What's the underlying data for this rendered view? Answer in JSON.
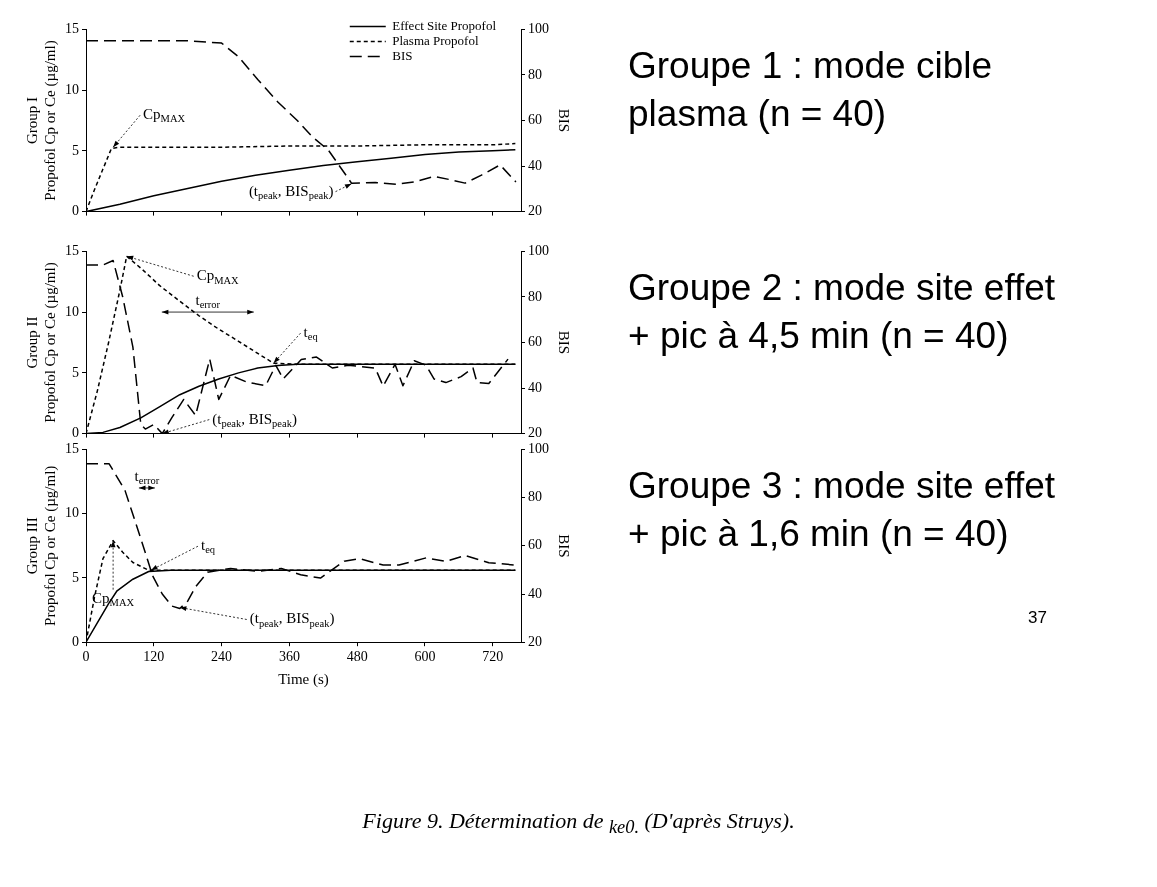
{
  "chart_data": [
    {
      "type": "line",
      "ylabel": "Group I\nPropofol Cp or Ce (µg/ml)",
      "y2label": "BIS",
      "xlim": [
        0,
        770
      ],
      "xticks": [
        0,
        120,
        240,
        360,
        480,
        600,
        720
      ],
      "ylim": [
        0,
        15
      ],
      "yticks": [
        0,
        5,
        10,
        15
      ],
      "y2lim": [
        20,
        100
      ],
      "y2ticks": [
        20,
        40,
        60,
        80,
        100
      ],
      "tick_labels": "y",
      "legend": "top right",
      "series": [
        {
          "name": "Effect Site Propofol",
          "color": "#000000",
          "line_style": "solid",
          "x": [
            0,
            60,
            120,
            180,
            240,
            300,
            360,
            420,
            480,
            540,
            600,
            660,
            720,
            760
          ],
          "values": [
            0,
            0.6,
            1.3,
            1.9,
            2.5,
            3.0,
            3.4,
            3.8,
            4.1,
            4.4,
            4.7,
            4.9,
            5.0,
            5.1
          ]
        },
        {
          "name": "Plasma Propofol",
          "color": "#000000",
          "line_style": "dotted",
          "x": [
            0,
            15,
            30,
            45,
            60,
            120,
            240,
            360,
            480,
            600,
            720,
            760
          ],
          "values": [
            0,
            1.8,
            3.5,
            5.2,
            5.3,
            5.3,
            5.3,
            5.4,
            5.4,
            5.5,
            5.5,
            5.6
          ]
        },
        {
          "name": "BIS",
          "color": "#000000",
          "line_style": "dashed",
          "axis": "y2",
          "x": [
            0,
            60,
            120,
            180,
            240,
            270,
            304,
            340,
            374,
            400,
            429,
            470,
            512,
            550,
            581,
            616,
            645,
            671,
            700,
            733,
            761
          ],
          "values": [
            95,
            95,
            95,
            95,
            94,
            88,
            78,
            68,
            60,
            53,
            47,
            32.5,
            32.8,
            32,
            33,
            35.4,
            34,
            32.5,
            36,
            40.5,
            33
          ]
        }
      ],
      "annotations": [
        {
          "text": "Cp$_{MAX}$",
          "x": 48,
          "y": 5.3
        },
        {
          "text": "(t$_{peak}$, BIS$_{peak}$)",
          "x": 470,
          "y": 2.3
        }
      ]
    },
    {
      "type": "line",
      "ylabel": "Group II\nPropofol Cp or Ce (µg/ml)",
      "y2label": "BIS",
      "xlim": [
        0,
        770
      ],
      "xticks": [
        0,
        120,
        240,
        360,
        480,
        600,
        720
      ],
      "ylim": [
        0,
        15
      ],
      "yticks": [
        0,
        5,
        10,
        15
      ],
      "y2lim": [
        20,
        100
      ],
      "y2ticks": [
        20,
        40,
        60,
        80,
        100
      ],
      "tick_labels": "y",
      "series": [
        {
          "color": "#000000",
          "line_style": "solid",
          "x": [
            0,
            30,
            60,
            97,
            130,
            166,
            200,
            235,
            270,
            304,
            340,
            374,
            450,
            550,
            650,
            760
          ],
          "values": [
            0,
            0.1,
            0.5,
            1.3,
            2.2,
            3.2,
            3.9,
            4.5,
            5.0,
            5.4,
            5.6,
            5.7,
            5.7,
            5.7,
            5.7,
            5.7
          ]
        },
        {
          "color": "#000000",
          "line_style": "dotted",
          "x": [
            0,
            20,
            40,
            60,
            72,
            100,
            130,
            166,
            200,
            235,
            270,
            304,
            332,
            380,
            500,
            650,
            760
          ],
          "values": [
            0,
            3.5,
            7.5,
            11.8,
            14.6,
            13.5,
            12.2,
            10.9,
            9.7,
            8.6,
            7.6,
            6.6,
            5.8,
            5.7,
            5.7,
            5.7,
            5.7
          ]
        },
        {
          "color": "#000000",
          "line_style": "dashed",
          "axis": "y2",
          "x": [
            0,
            30,
            48,
            65,
            83,
            97,
            105,
            120,
            135,
            152,
            173,
            194,
            219,
            235,
            256,
            284,
            318,
            336,
            349,
            381,
            408,
            436,
            464,
            512,
            526,
            547,
            561,
            581,
            602,
            616,
            637,
            664,
            685,
            692,
            713,
            747
          ],
          "values": [
            94,
            94,
            96,
            80,
            58,
            24,
            22,
            24,
            20,
            27,
            35,
            28,
            52.7,
            35,
            45.6,
            42.7,
            41,
            50,
            44,
            52.5,
            53.6,
            48.8,
            50,
            48.8,
            40.8,
            50.4,
            41,
            52,
            50,
            44,
            42.4,
            45,
            48.8,
            42.5,
            42,
            52.7
          ]
        }
      ],
      "annotations": [
        {
          "text": "Cp$_{MAX}$",
          "x": 72,
          "y": 14.6
        },
        "t$_{error}$",
        {
          "text": "t$_{eq}$",
          "x": 332,
          "y": 5.8
        },
        {
          "text": "(t$_{peak}$, BIS$_{peak}$)",
          "x": 135,
          "y": 0
        }
      ]
    },
    {
      "type": "line",
      "ylabel": "Group III\nPropofol Cp or Ce (µg/ml)",
      "y2label": "BIS",
      "xlabel": "Time (s)",
      "xlim": [
        0,
        770
      ],
      "xticks": [
        0,
        120,
        240,
        360,
        480,
        600,
        720
      ],
      "ylim": [
        0,
        15
      ],
      "yticks": [
        0,
        5,
        10,
        15
      ],
      "y2lim": [
        20,
        100
      ],
      "y2ticks": [
        20,
        40,
        60,
        80,
        100
      ],
      "series": [
        {
          "color": "#000000",
          "line_style": "solid",
          "x": [
            0,
            20,
            40,
            55,
            83,
            111,
            150,
            300,
            500,
            760
          ],
          "values": [
            0,
            1.5,
            3.0,
            4.0,
            4.9,
            5.5,
            5.6,
            5.6,
            5.6,
            5.6
          ]
        },
        {
          "color": "#000000",
          "line_style": "dotted",
          "x": [
            0,
            15,
            30,
            48,
            65,
            83,
            111,
            150,
            300,
            500,
            760
          ],
          "values": [
            0,
            3.5,
            6.5,
            7.9,
            7.0,
            6.2,
            5.6,
            5.6,
            5.6,
            5.6,
            5.6
          ]
        },
        {
          "color": "#000000",
          "line_style": "dashed",
          "axis": "y2",
          "x": [
            0,
            41,
            69,
            97,
            118,
            135,
            152,
            166,
            180,
            194,
            215,
            256,
            304,
            346,
            380,
            415,
            457,
            484,
            526,
            554,
            602,
            637,
            671,
            713,
            760
          ],
          "values": [
            94,
            94,
            83,
            63,
            47.5,
            40,
            35,
            34,
            37,
            43,
            49,
            50.6,
            49.4,
            50.6,
            48,
            46.6,
            53.6,
            54.7,
            52,
            52,
            55,
            53.5,
            56,
            53,
            52
          ]
        }
      ],
      "annotations": [
        "t$_{error}$",
        {
          "text": "t$_{eq}$",
          "x": 115,
          "y": 5.6
        },
        {
          "text": "Cp$_{MAX}$",
          "x": 48,
          "y": 7.9
        },
        {
          "text": "(t$_{peak}$, BIS$_{peak}$)",
          "x": 166,
          "y": 2.7
        }
      ]
    },
    {
      "type": "other",
      "annotations": [
        "Groupe 1 : mode cible plasma (n = 40)",
        "Groupe 2 : mode site effet + pic à 4,5 min (n = 40)",
        "Groupe 3 : mode site effet + pic à 1,6 min (n = 40)",
        "37",
        "Figure 9. Détermination de $_{ke0.}$ (D'après Struys)."
      ]
    }
  ]
}
